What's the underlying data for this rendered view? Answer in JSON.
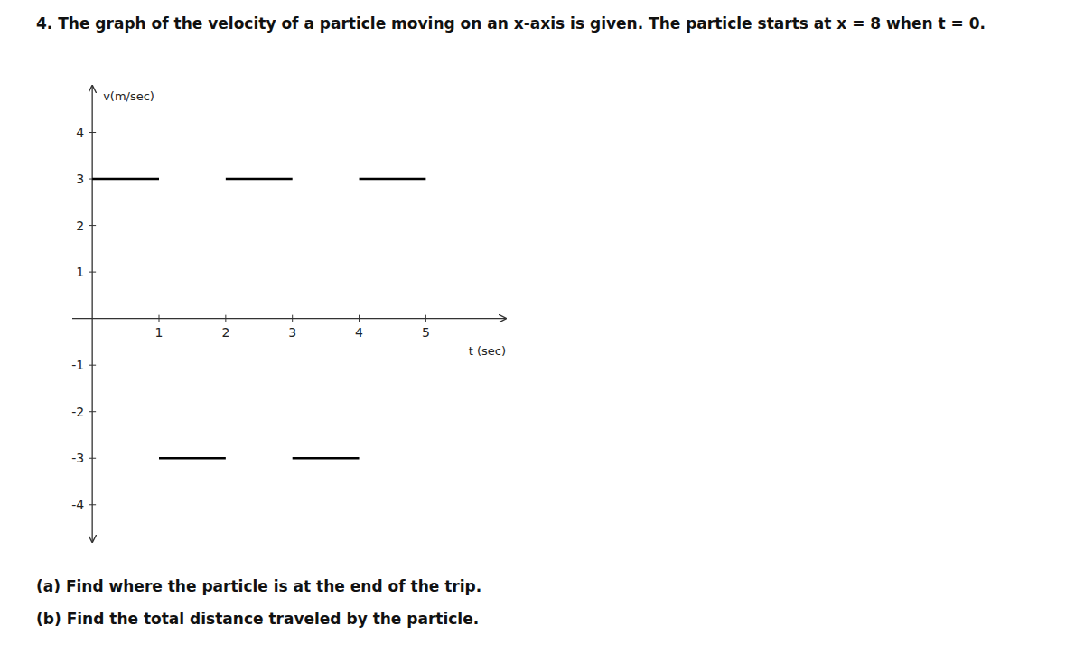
{
  "chart_data": {
    "type": "segments",
    "title": "4. The graph of the velocity of a particle moving on an x-axis is given. The particle starts at x = 8 when t = 0.",
    "x_label": "t (sec)",
    "y_label": "v(m/sec)",
    "segments": [
      {
        "x1": 0,
        "x2": 1,
        "y": 3
      },
      {
        "x1": 2,
        "x2": 3,
        "y": 3
      },
      {
        "x1": 4,
        "x2": 5,
        "y": 3
      },
      {
        "x1": 1,
        "x2": 2,
        "y": -3
      },
      {
        "x1": 3,
        "x2": 4,
        "y": -3
      }
    ],
    "color": "#000000",
    "xlim": [
      -0.3,
      6.2
    ],
    "ylim": [
      -4.8,
      5.0
    ],
    "xticks": [
      1,
      2,
      3,
      4,
      5
    ],
    "yticks": [
      -4,
      -3,
      -2,
      -1,
      1,
      2,
      3,
      4
    ],
    "grid": false,
    "annotations": [
      "(a) Find where the particle is at the end of the trip.",
      "(b) Find the total distance traveled by the particle."
    ]
  }
}
